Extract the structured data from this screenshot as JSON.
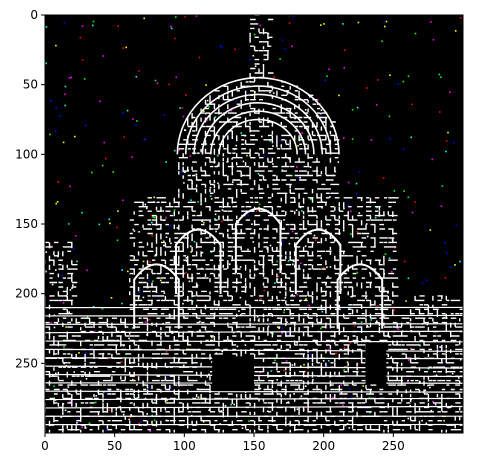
{
  "image": {
    "subject": "taj-mahal-edge-detection",
    "colors": {
      "background": "#000000",
      "edges": "#ffffff",
      "noise": [
        "#ff0000",
        "#00ff00",
        "#0000ff",
        "#ff00ff",
        "#00ffff",
        "#ffff00"
      ],
      "frame": "#000000",
      "figure_background": "#ffffff"
    }
  },
  "axes": {
    "x_ticks": [
      "0",
      "50",
      "100",
      "150",
      "200",
      "250"
    ],
    "y_ticks": [
      "0",
      "50",
      "100",
      "150",
      "200",
      "250"
    ],
    "xlim": [
      0,
      300
    ],
    "ylim": [
      300,
      0
    ]
  }
}
